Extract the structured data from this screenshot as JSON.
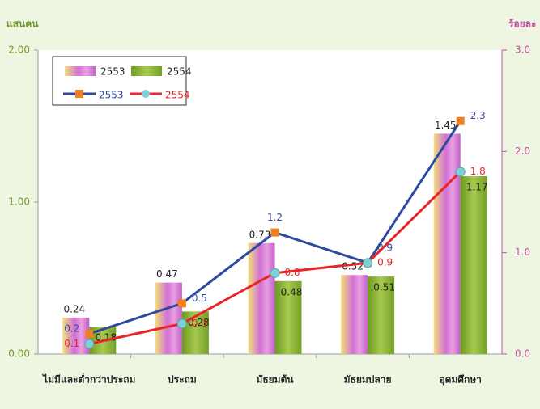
{
  "chart_data": {
    "type": "bar_line",
    "ylabel": "แสนคน",
    "y2label": "ร้อยละ",
    "categories": [
      "ไม่มีและต่ำกว่าประถม",
      "ประถม",
      "มัธยมต้น",
      "มัธยมปลาย",
      "อุดมศึกษา"
    ],
    "ylim": [
      0,
      2
    ],
    "yticks": [
      {
        "value": 0,
        "label": "0.00"
      },
      {
        "value": 1,
        "label": "1.00"
      },
      {
        "value": 2,
        "label": "2.00"
      }
    ],
    "y2lim": [
      0,
      3
    ],
    "y2ticks": [
      {
        "value": 0,
        "label": "0.0"
      },
      {
        "value": 1,
        "label": "1.0"
      },
      {
        "value": 2,
        "label": "2.0"
      },
      {
        "value": 3,
        "label": "3.0"
      }
    ],
    "series": [
      {
        "name": "2553",
        "kind": "bar",
        "color": "#d070d6",
        "values": [
          0.24,
          0.47,
          0.73,
          0.52,
          1.45
        ]
      },
      {
        "name": "2554",
        "kind": "bar",
        "color": "#86ad34",
        "values": [
          0.18,
          0.28,
          0.48,
          0.51,
          1.17
        ]
      },
      {
        "name": "2553",
        "kind": "line",
        "axis": "y2",
        "color": "#2e4a9e",
        "marker_color": "#f07f1f",
        "values": [
          0.2,
          0.5,
          1.2,
          0.9,
          2.3
        ]
      },
      {
        "name": "2554",
        "kind": "line",
        "axis": "y2",
        "color": "#e8262a",
        "marker_color": "#7ecfd6",
        "values": [
          0.1,
          0.3,
          0.8,
          0.9,
          1.8
        ]
      }
    ],
    "legend": "upper left"
  }
}
